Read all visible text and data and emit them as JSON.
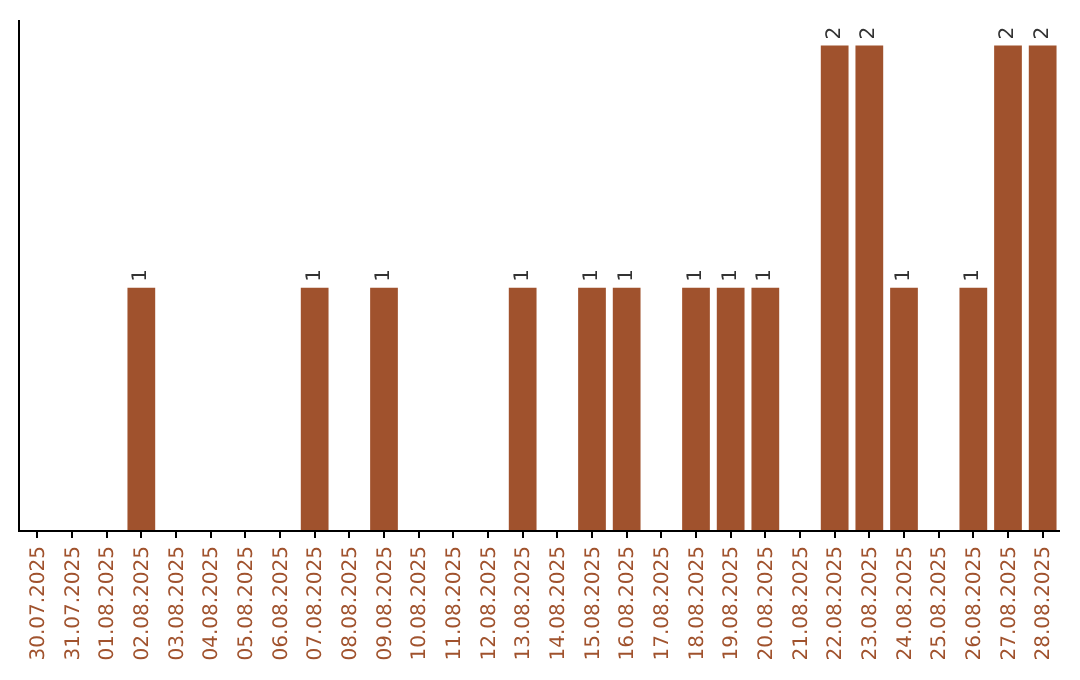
{
  "chart_data": {
    "type": "bar",
    "categories": [
      "30.07.2025",
      "31.07.2025",
      "01.08.2025",
      "02.08.2025",
      "03.08.2025",
      "04.08.2025",
      "05.08.2025",
      "06.08.2025",
      "07.08.2025",
      "08.08.2025",
      "09.08.2025",
      "10.08.2025",
      "11.08.2025",
      "12.08.2025",
      "13.08.2025",
      "14.08.2025",
      "15.08.2025",
      "16.08.2025",
      "17.08.2025",
      "18.08.2025",
      "19.08.2025",
      "20.08.2025",
      "21.08.2025",
      "22.08.2025",
      "23.08.2025",
      "24.08.2025",
      "25.08.2025",
      "26.08.2025",
      "27.08.2025",
      "28.08.2025"
    ],
    "values": [
      0,
      0,
      0,
      1,
      0,
      0,
      0,
      0,
      1,
      0,
      1,
      0,
      0,
      0,
      1,
      0,
      1,
      1,
      0,
      1,
      1,
      1,
      0,
      2,
      2,
      1,
      0,
      1,
      2,
      2
    ],
    "value_labels": [
      null,
      null,
      null,
      "1",
      null,
      null,
      null,
      null,
      "1",
      null,
      "1",
      null,
      null,
      null,
      "1",
      null,
      "1",
      "1",
      null,
      "1",
      "1",
      "1",
      null,
      "2",
      "2",
      "1",
      null,
      "1",
      "2",
      "2"
    ],
    "color": "#a0522d",
    "grid": false,
    "legend": false
  }
}
